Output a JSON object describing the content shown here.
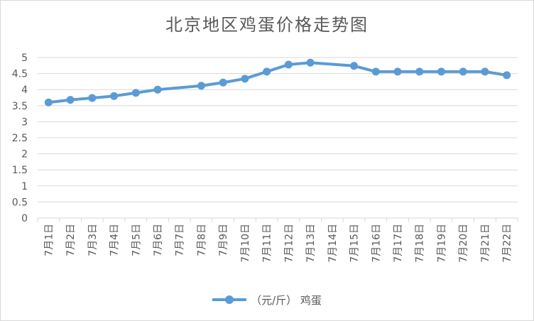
{
  "chart_data": {
    "type": "line",
    "title": "北京地区鸡蛋价格走势图",
    "xlabel": "",
    "ylabel": "",
    "ylim": [
      0,
      5
    ],
    "yticks": [
      "0",
      "0.5",
      "1",
      "1.5",
      "2",
      "2.5",
      "3",
      "3.5",
      "4",
      "4.5",
      "5"
    ],
    "grid": true,
    "legend_position": "bottom",
    "series_color": "#5b9bd5",
    "categories": [
      "7月1日",
      "7月2日",
      "7月3日",
      "7月4日",
      "7月5日",
      "7月6日",
      "7月7日",
      "7月8日",
      "7月9日",
      "7月10日",
      "7月11日",
      "7月12日",
      "7月13日",
      "7月14日",
      "7月15日",
      "7月16日",
      "7月17日",
      "7月18日",
      "7月19日",
      "7月20日",
      "7月21日",
      "7月22日"
    ],
    "series": [
      {
        "name": "（元/斤） 鸡蛋",
        "values": [
          3.6,
          3.68,
          3.74,
          3.8,
          3.9,
          4.0,
          null,
          4.12,
          4.22,
          4.34,
          4.56,
          4.78,
          4.84,
          null,
          4.74,
          4.56,
          4.56,
          4.56,
          4.56,
          4.56,
          4.56,
          4.45
        ]
      }
    ]
  }
}
